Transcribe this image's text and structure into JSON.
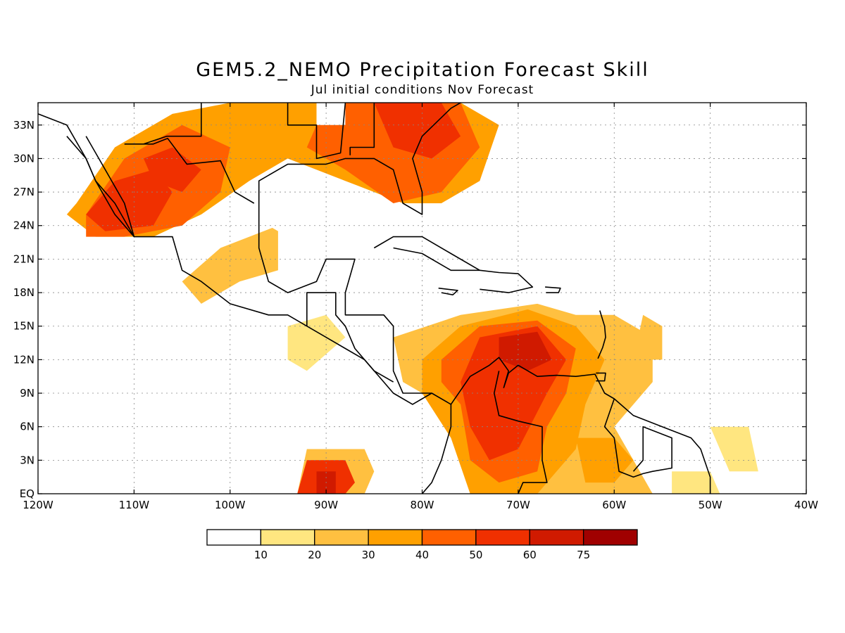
{
  "title": "GEM5.2_NEMO Precipitation Forecast Skill",
  "subtitle": "Jul initial conditions   Nov Forecast",
  "map": {
    "lon_range": [
      -120,
      -40
    ],
    "lat_range": [
      0,
      35
    ],
    "lon_ticks": [
      {
        "value": -120,
        "label": "120W"
      },
      {
        "value": -110,
        "label": "110W"
      },
      {
        "value": -100,
        "label": "100W"
      },
      {
        "value": -90,
        "label": "90W"
      },
      {
        "value": -80,
        "label": "80W"
      },
      {
        "value": -70,
        "label": "70W"
      },
      {
        "value": -60,
        "label": "60W"
      },
      {
        "value": -50,
        "label": "50W"
      },
      {
        "value": -40,
        "label": "40W"
      }
    ],
    "lat_ticks": [
      {
        "value": 0,
        "label": "EQ"
      },
      {
        "value": 3,
        "label": "3N"
      },
      {
        "value": 6,
        "label": "6N"
      },
      {
        "value": 9,
        "label": "9N"
      },
      {
        "value": 12,
        "label": "12N"
      },
      {
        "value": 15,
        "label": "15N"
      },
      {
        "value": 18,
        "label": "18N"
      },
      {
        "value": 21,
        "label": "21N"
      },
      {
        "value": 24,
        "label": "24N"
      },
      {
        "value": 27,
        "label": "27N"
      },
      {
        "value": 30,
        "label": "30N"
      },
      {
        "value": 33,
        "label": "33N"
      }
    ],
    "grid": true
  },
  "colorbar": {
    "levels": [
      "10",
      "20",
      "30",
      "40",
      "50",
      "60",
      "75"
    ],
    "colors": [
      "#ffffff",
      "#ffe680",
      "#ffc040",
      "#ffa000",
      "#ff6000",
      "#f03000",
      "#d01a00",
      "#a00000"
    ]
  },
  "skill_regions": [
    {
      "level": 3,
      "lonlat": [
        [
          -116,
          26
        ],
        [
          -112,
          31
        ],
        [
          -106,
          34
        ],
        [
          -100,
          35
        ],
        [
          -92,
          35
        ],
        [
          -76,
          35
        ],
        [
          -72,
          33
        ],
        [
          -74,
          28
        ],
        [
          -78,
          26
        ],
        [
          -82,
          26
        ],
        [
          -88,
          28
        ],
        [
          -94,
          30
        ],
        [
          -98,
          28
        ],
        [
          -103,
          25
        ],
        [
          -108,
          23
        ],
        [
          -114,
          23
        ],
        [
          -117,
          25
        ]
      ]
    },
    {
      "level": 4,
      "lonlat": [
        [
          -115,
          25
        ],
        [
          -111,
          30
        ],
        [
          -105,
          33
        ],
        [
          -100,
          31
        ],
        [
          -101,
          27
        ],
        [
          -105,
          24
        ],
        [
          -111,
          23
        ],
        [
          -115,
          23
        ]
      ]
    },
    {
      "level": 4,
      "lonlat": [
        [
          -90,
          35
        ],
        [
          -76,
          35
        ],
        [
          -74,
          31
        ],
        [
          -78,
          27
        ],
        [
          -83,
          26
        ],
        [
          -88,
          29
        ],
        [
          -92,
          31
        ]
      ]
    },
    {
      "level": 5,
      "lonlat": [
        [
          -115,
          25
        ],
        [
          -112,
          28
        ],
        [
          -108,
          29
        ],
        [
          -106,
          27
        ],
        [
          -108,
          24
        ],
        [
          -113,
          23.5
        ]
      ]
    },
    {
      "level": 5,
      "lonlat": [
        [
          -109,
          30
        ],
        [
          -106,
          31
        ],
        [
          -103,
          29
        ],
        [
          -105,
          27
        ],
        [
          -108,
          28
        ]
      ]
    },
    {
      "level": 5,
      "lonlat": [
        [
          -85,
          35
        ],
        [
          -78,
          35
        ],
        [
          -76,
          32
        ],
        [
          -79,
          30
        ],
        [
          -83,
          31
        ]
      ]
    },
    {
      "level": 2,
      "lonlat": [
        [
          -83,
          14
        ],
        [
          -76,
          16
        ],
        [
          -68,
          17
        ],
        [
          -64,
          16
        ],
        [
          -60,
          16
        ],
        [
          -56,
          14
        ],
        [
          -56,
          10
        ],
        [
          -60,
          6
        ],
        [
          -58,
          3
        ],
        [
          -56,
          0
        ],
        [
          -74,
          0
        ],
        [
          -76,
          4
        ],
        [
          -78,
          8
        ],
        [
          -82,
          10
        ]
      ]
    },
    {
      "level": 3,
      "lonlat": [
        [
          -80,
          12
        ],
        [
          -76,
          15
        ],
        [
          -69,
          16.5
        ],
        [
          -64,
          15
        ],
        [
          -61,
          12
        ],
        [
          -63,
          8
        ],
        [
          -64,
          4
        ],
        [
          -68,
          0
        ],
        [
          -75,
          0
        ],
        [
          -77,
          5
        ],
        [
          -80,
          9
        ]
      ]
    },
    {
      "level": 4,
      "lonlat": [
        [
          -78,
          12
        ],
        [
          -74,
          15
        ],
        [
          -68,
          15.5
        ],
        [
          -64,
          13
        ],
        [
          -65,
          9
        ],
        [
          -67,
          6
        ],
        [
          -68,
          2
        ],
        [
          -72,
          1
        ],
        [
          -75,
          3
        ],
        [
          -76,
          8
        ],
        [
          -78,
          10
        ]
      ]
    },
    {
      "level": 5,
      "lonlat": [
        [
          -74,
          14
        ],
        [
          -68,
          15
        ],
        [
          -65,
          12
        ],
        [
          -67,
          9
        ],
        [
          -70,
          4
        ],
        [
          -73,
          3
        ],
        [
          -75,
          6
        ],
        [
          -76,
          10
        ]
      ]
    },
    {
      "level": 6,
      "lonlat": [
        [
          -72,
          14
        ],
        [
          -68,
          14.5
        ],
        [
          -66.5,
          12
        ],
        [
          -69,
          11
        ],
        [
          -72,
          12
        ]
      ]
    },
    {
      "level": 3,
      "lonlat": [
        [
          -64,
          5
        ],
        [
          -60,
          5
        ],
        [
          -58,
          3
        ],
        [
          -60,
          1
        ],
        [
          -63,
          1
        ]
      ]
    },
    {
      "level": 2,
      "lonlat": [
        [
          -92,
          4
        ],
        [
          -86,
          4
        ],
        [
          -85,
          2
        ],
        [
          -86,
          0
        ],
        [
          -93,
          0
        ]
      ]
    },
    {
      "level": 5,
      "lonlat": [
        [
          -92,
          3
        ],
        [
          -88,
          3
        ],
        [
          -87,
          1
        ],
        [
          -88,
          0
        ],
        [
          -93,
          0
        ]
      ]
    },
    {
      "level": 6,
      "lonlat": [
        [
          -91,
          2
        ],
        [
          -89,
          2
        ],
        [
          -89,
          0
        ],
        [
          -91,
          0
        ]
      ]
    },
    {
      "level": 2,
      "lonlat": [
        [
          -105,
          19
        ],
        [
          -101,
          22
        ],
        [
          -95,
          24
        ],
        [
          -95,
          20
        ],
        [
          -99,
          19
        ],
        [
          -103,
          17
        ]
      ]
    },
    {
      "level": 1,
      "lonlat": [
        [
          -94,
          15
        ],
        [
          -90,
          16
        ],
        [
          -88,
          14
        ],
        [
          -92,
          11
        ],
        [
          -94,
          12
        ]
      ]
    },
    {
      "level": 2,
      "lonlat": [
        [
          -57,
          16
        ],
        [
          -55,
          15
        ],
        [
          -55,
          12
        ],
        [
          -58,
          12
        ]
      ]
    },
    {
      "level": 1,
      "lonlat": [
        [
          -50,
          6
        ],
        [
          -46,
          6
        ],
        [
          -45,
          2
        ],
        [
          -48,
          2
        ]
      ]
    },
    {
      "level": 1,
      "lonlat": [
        [
          -54,
          2
        ],
        [
          -50,
          2
        ],
        [
          -49,
          0
        ],
        [
          -54,
          0
        ]
      ]
    }
  ],
  "white_regions": [
    {
      "lonlat": [
        [
          -96,
          26
        ],
        [
          -89,
          27
        ],
        [
          -89,
          24
        ],
        [
          -94,
          23
        ],
        [
          -96,
          24
        ]
      ]
    },
    {
      "lonlat": [
        [
          -91,
          35
        ],
        [
          -88,
          35
        ],
        [
          -88,
          33
        ],
        [
          -91,
          33
        ]
      ]
    }
  ],
  "land_outlines": [
    {
      "name": "us-mexico-coast",
      "lonlat": [
        [
          -120,
          34
        ],
        [
          -117,
          33
        ],
        [
          -115,
          30
        ],
        [
          -114,
          28
        ],
        [
          -112,
          26
        ],
        [
          -110,
          23
        ],
        [
          -106,
          23
        ],
        [
          -105,
          20
        ],
        [
          -103,
          19
        ],
        [
          -100,
          17
        ],
        [
          -96,
          16
        ],
        [
          -94,
          16
        ],
        [
          -92,
          15
        ],
        [
          -90,
          14
        ],
        [
          -88,
          13
        ],
        [
          -86,
          12
        ],
        [
          -84,
          10
        ],
        [
          -83,
          9
        ],
        [
          -81,
          8
        ],
        [
          -79,
          9
        ],
        [
          -77,
          8
        ],
        [
          -77,
          6
        ],
        [
          -78,
          3
        ],
        [
          -79,
          1
        ],
        [
          -80,
          0
        ]
      ]
    },
    {
      "name": "baja",
      "lonlat": [
        [
          -117,
          32
        ],
        [
          -115,
          30
        ],
        [
          -114,
          28
        ],
        [
          -112,
          25
        ],
        [
          -110,
          23
        ],
        [
          -111,
          26
        ],
        [
          -113,
          29
        ],
        [
          -115,
          32
        ]
      ]
    },
    {
      "name": "gulf-coast",
      "lonlat": [
        [
          -97,
          26
        ],
        [
          -97,
          28
        ],
        [
          -94,
          29.5
        ],
        [
          -90,
          29.5
        ],
        [
          -88,
          30
        ],
        [
          -85,
          30
        ],
        [
          -83,
          29
        ],
        [
          -82,
          26
        ],
        [
          -80,
          25
        ],
        [
          -80,
          27
        ],
        [
          -81,
          30
        ],
        [
          -80,
          32
        ],
        [
          -77,
          34.5
        ],
        [
          -76,
          35
        ]
      ]
    },
    {
      "name": "mexico-gulf",
      "lonlat": [
        [
          -97,
          26
        ],
        [
          -97,
          22
        ],
        [
          -96,
          19
        ],
        [
          -94,
          18
        ],
        [
          -91,
          19
        ],
        [
          -90,
          21
        ],
        [
          -87,
          21
        ],
        [
          -88,
          18
        ],
        [
          -88,
          16
        ],
        [
          -84,
          16
        ],
        [
          -83,
          15
        ],
        [
          -83,
          11
        ],
        [
          -82,
          9
        ],
        [
          -79,
          9
        ]
      ]
    },
    {
      "name": "cuba",
      "lonlat": [
        [
          -85,
          22
        ],
        [
          -83,
          23
        ],
        [
          -80,
          23
        ],
        [
          -77,
          21.5
        ],
        [
          -74,
          20
        ],
        [
          -77,
          20
        ],
        [
          -80,
          21.5
        ],
        [
          -83,
          22
        ]
      ]
    },
    {
      "name": "hispaniola",
      "lonlat": [
        [
          -74,
          20
        ],
        [
          -72,
          19.8
        ],
        [
          -70,
          19.7
        ],
        [
          -68.5,
          18.5
        ],
        [
          -71,
          18
        ],
        [
          -74,
          18.3
        ]
      ]
    },
    {
      "name": "jamaica",
      "lonlat": [
        [
          -78.3,
          18.4
        ],
        [
          -76.3,
          18.2
        ],
        [
          -76.8,
          17.8
        ],
        [
          -78,
          18
        ]
      ]
    },
    {
      "name": "puerto-rico",
      "lonlat": [
        [
          -67.2,
          18.5
        ],
        [
          -65.6,
          18.4
        ],
        [
          -65.8,
          18
        ],
        [
          -67.1,
          18
        ]
      ]
    },
    {
      "name": "south-america-north",
      "lonlat": [
        [
          -77,
          8
        ],
        [
          -75,
          10.5
        ],
        [
          -73,
          11.5
        ],
        [
          -72,
          12.2
        ],
        [
          -71,
          11
        ],
        [
          -71.5,
          9.5
        ],
        [
          -71,
          10.8
        ],
        [
          -70,
          11.5
        ],
        [
          -68,
          10.5
        ],
        [
          -66,
          10.6
        ],
        [
          -64,
          10.5
        ],
        [
          -62,
          10.7
        ],
        [
          -61,
          9
        ],
        [
          -60,
          8.5
        ],
        [
          -58,
          7
        ],
        [
          -55,
          6
        ],
        [
          -52,
          5
        ],
        [
          -51,
          4
        ],
        [
          -50,
          1.5
        ],
        [
          -50,
          0
        ]
      ]
    },
    {
      "name": "venezuela-colombia-border",
      "lonlat": [
        [
          -72,
          11
        ],
        [
          -72.5,
          9
        ],
        [
          -72,
          7
        ],
        [
          -70,
          6.5
        ],
        [
          -67.5,
          6
        ],
        [
          -67.5,
          3
        ],
        [
          -67,
          1
        ],
        [
          -69.5,
          1
        ],
        [
          -70,
          0
        ]
      ]
    },
    {
      "name": "guyana-borders",
      "lonlat": [
        [
          -60,
          8.5
        ],
        [
          -61,
          6
        ],
        [
          -60,
          5
        ],
        [
          -59.5,
          2
        ],
        [
          -58,
          1.5
        ],
        [
          -57,
          1.8
        ],
        [
          -56,
          2
        ],
        [
          -54,
          2.3
        ],
        [
          -54,
          5
        ],
        [
          -57,
          6
        ],
        [
          -57,
          3
        ],
        [
          -58,
          2
        ]
      ]
    },
    {
      "name": "central-america-borders",
      "lonlat": [
        [
          -92,
          15
        ],
        [
          -92,
          18
        ],
        [
          -89,
          18
        ],
        [
          -89,
          16
        ],
        [
          -88,
          15
        ],
        [
          -87,
          13
        ],
        [
          -85,
          11
        ],
        [
          -83,
          10
        ]
      ]
    },
    {
      "name": "us-inland-border",
      "lonlat": [
        [
          -111,
          31.3
        ],
        [
          -108,
          31.3
        ],
        [
          -106.5,
          31.8
        ],
        [
          -104.5,
          29.5
        ],
        [
          -101,
          29.8
        ],
        [
          -99.5,
          27
        ],
        [
          -97.5,
          26
        ]
      ]
    },
    {
      "name": "us-states",
      "lonlat": [
        [
          -103,
          35
        ],
        [
          -103,
          32
        ],
        [
          -106.6,
          32
        ],
        [
          -109,
          31.3
        ]
      ]
    },
    {
      "name": "us-states-2",
      "lonlat": [
        [
          -94,
          35
        ],
        [
          -94,
          33
        ],
        [
          -91,
          33
        ],
        [
          -91,
          30
        ],
        [
          -88.5,
          30.5
        ],
        [
          -88,
          35
        ]
      ]
    },
    {
      "name": "us-states-3",
      "lonlat": [
        [
          -85,
          35
        ],
        [
          -85,
          31
        ],
        [
          -87.5,
          31
        ],
        [
          -87.5,
          30.3
        ]
      ]
    },
    {
      "name": "trinidad",
      "lonlat": [
        [
          -61.9,
          10.8
        ],
        [
          -60.9,
          10.8
        ],
        [
          -61,
          10.1
        ],
        [
          -61.9,
          10.1
        ]
      ]
    },
    {
      "name": "lesser-antilles",
      "lonlat": [
        [
          -61.5,
          16.4
        ],
        [
          -61,
          15
        ],
        [
          -60.9,
          14
        ],
        [
          -61.2,
          13.1
        ],
        [
          -61.7,
          12.1
        ]
      ]
    }
  ]
}
